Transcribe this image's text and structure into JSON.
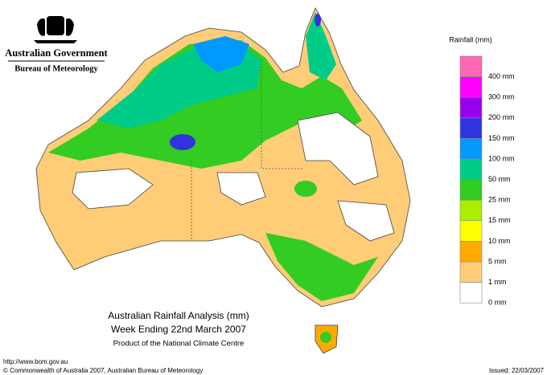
{
  "header": {
    "government": "Australian Government",
    "bureau": "Bureau of Meteorology"
  },
  "legend": {
    "title": "Rainfall (mm)",
    "items": [
      {
        "label": "400 mm",
        "color": "#ff66b3"
      },
      {
        "label": "300 mm",
        "color": "#ff00ff"
      },
      {
        "label": "200 mm",
        "color": "#9900ee"
      },
      {
        "label": "150 mm",
        "color": "#3333dd"
      },
      {
        "label": "100 mm",
        "color": "#0099ff"
      },
      {
        "label": "50 mm",
        "color": "#00cc88"
      },
      {
        "label": "25 mm",
        "color": "#33cc22"
      },
      {
        "label": "15 mm",
        "color": "#aaee00"
      },
      {
        "label": "10 mm",
        "color": "#ffff00"
      },
      {
        "label": "5 mm",
        "color": "#ffaa00"
      },
      {
        "label": "1 mm",
        "color": "#ffcc77"
      },
      {
        "label": "0 mm",
        "color": "#ffffff"
      }
    ]
  },
  "caption": {
    "title": "Australian Rainfall Analysis (mm)",
    "period": "Week Ending 22nd March 2007",
    "product": "Product of the National Climate Centre"
  },
  "footer": {
    "url": "http://www.bom.gov.au",
    "copyright": "© Commonwealth of Australia 2007, Australian Bureau of Meteorology",
    "issued": "Issued: 22/03/2007"
  }
}
